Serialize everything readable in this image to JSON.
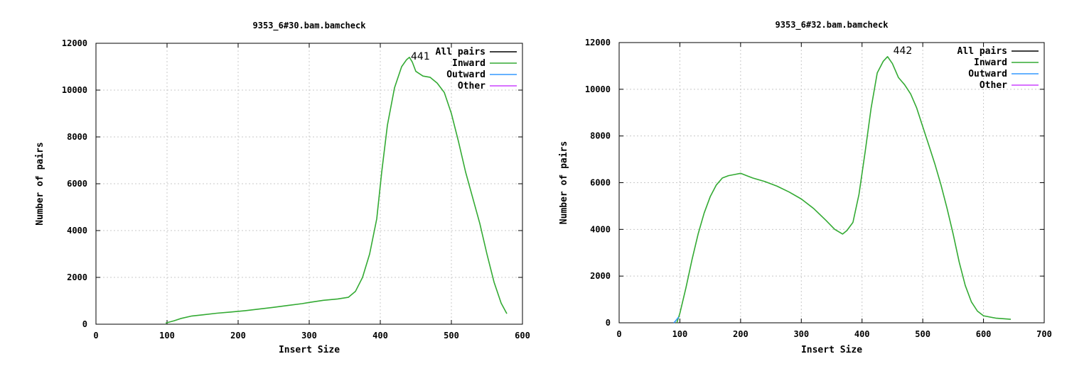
{
  "chart_data": [
    {
      "type": "line",
      "title": "9353_6#30.bam.bamcheck",
      "xlabel": "Insert Size",
      "ylabel": "Number of pairs",
      "xlim": [
        0,
        600
      ],
      "ylim": [
        0,
        12000
      ],
      "xticks": [
        "0",
        "100",
        "200",
        "300",
        "400",
        "500",
        "600"
      ],
      "yticks": [
        "0",
        "2000",
        "4000",
        "6000",
        "8000",
        "10000",
        "12000"
      ],
      "grid": true,
      "legend_position": "top-right",
      "annotation": "441",
      "annotation_point": [
        441,
        11400
      ],
      "series": [
        {
          "name": "All pairs",
          "color": "#000000",
          "x": [],
          "y": []
        },
        {
          "name": "Inward",
          "color": "#33aa33",
          "x": [
            98,
            110,
            120,
            135,
            150,
            170,
            190,
            210,
            230,
            250,
            270,
            290,
            300,
            320,
            340,
            355,
            365,
            375,
            385,
            395,
            402,
            410,
            420,
            430,
            437,
            441,
            445,
            450,
            460,
            470,
            480,
            490,
            500,
            510,
            520,
            530,
            540,
            550,
            560,
            570,
            578
          ],
          "y": [
            50,
            150,
            250,
            350,
            400,
            470,
            520,
            580,
            650,
            720,
            800,
            880,
            930,
            1020,
            1080,
            1150,
            1400,
            2000,
            3000,
            4500,
            6500,
            8500,
            10100,
            11000,
            11300,
            11400,
            11200,
            10800,
            10600,
            10550,
            10300,
            9900,
            9000,
            7800,
            6500,
            5400,
            4300,
            3000,
            1800,
            900,
            450
          ]
        },
        {
          "name": "Outward",
          "color": "#3399ff",
          "x": [],
          "y": []
        },
        {
          "name": "Other",
          "color": "#cc44ff",
          "x": [],
          "y": []
        }
      ]
    },
    {
      "type": "line",
      "title": "9353_6#32.bam.bamcheck",
      "xlabel": "Insert Size",
      "ylabel": "Number of pairs",
      "xlim": [
        0,
        700
      ],
      "ylim": [
        0,
        12000
      ],
      "xticks": [
        "0",
        "100",
        "200",
        "300",
        "400",
        "500",
        "600",
        "700"
      ],
      "yticks": [
        "0",
        "2000",
        "4000",
        "6000",
        "8000",
        "10000",
        "12000"
      ],
      "grid": true,
      "legend_position": "top-right",
      "annotation": "442",
      "annotation_point": [
        442,
        11400
      ],
      "series": [
        {
          "name": "All pairs",
          "color": "#000000",
          "x": [],
          "y": []
        },
        {
          "name": "Inward",
          "color": "#33aa33",
          "x": [
            95,
            100,
            110,
            120,
            130,
            140,
            150,
            160,
            170,
            180,
            190,
            200,
            210,
            220,
            240,
            260,
            280,
            300,
            320,
            340,
            355,
            368,
            375,
            385,
            395,
            405,
            415,
            425,
            435,
            442,
            450,
            460,
            470,
            480,
            490,
            500,
            510,
            520,
            530,
            540,
            550,
            560,
            570,
            580,
            590,
            600,
            620,
            645
          ],
          "y": [
            0,
            400,
            1500,
            2700,
            3800,
            4700,
            5400,
            5900,
            6200,
            6300,
            6350,
            6400,
            6300,
            6200,
            6050,
            5850,
            5600,
            5300,
            4900,
            4400,
            4000,
            3800,
            3950,
            4300,
            5500,
            7300,
            9200,
            10700,
            11200,
            11400,
            11100,
            10500,
            10200,
            9800,
            9200,
            8400,
            7600,
            6800,
            5900,
            4900,
            3800,
            2600,
            1600,
            900,
            500,
            300,
            200,
            150
          ]
        },
        {
          "name": "Outward",
          "color": "#3399ff",
          "x": [
            90,
            93,
            96,
            98
          ],
          "y": [
            0,
            80,
            180,
            250
          ]
        },
        {
          "name": "Other",
          "color": "#cc44ff",
          "x": [],
          "y": []
        }
      ]
    }
  ]
}
